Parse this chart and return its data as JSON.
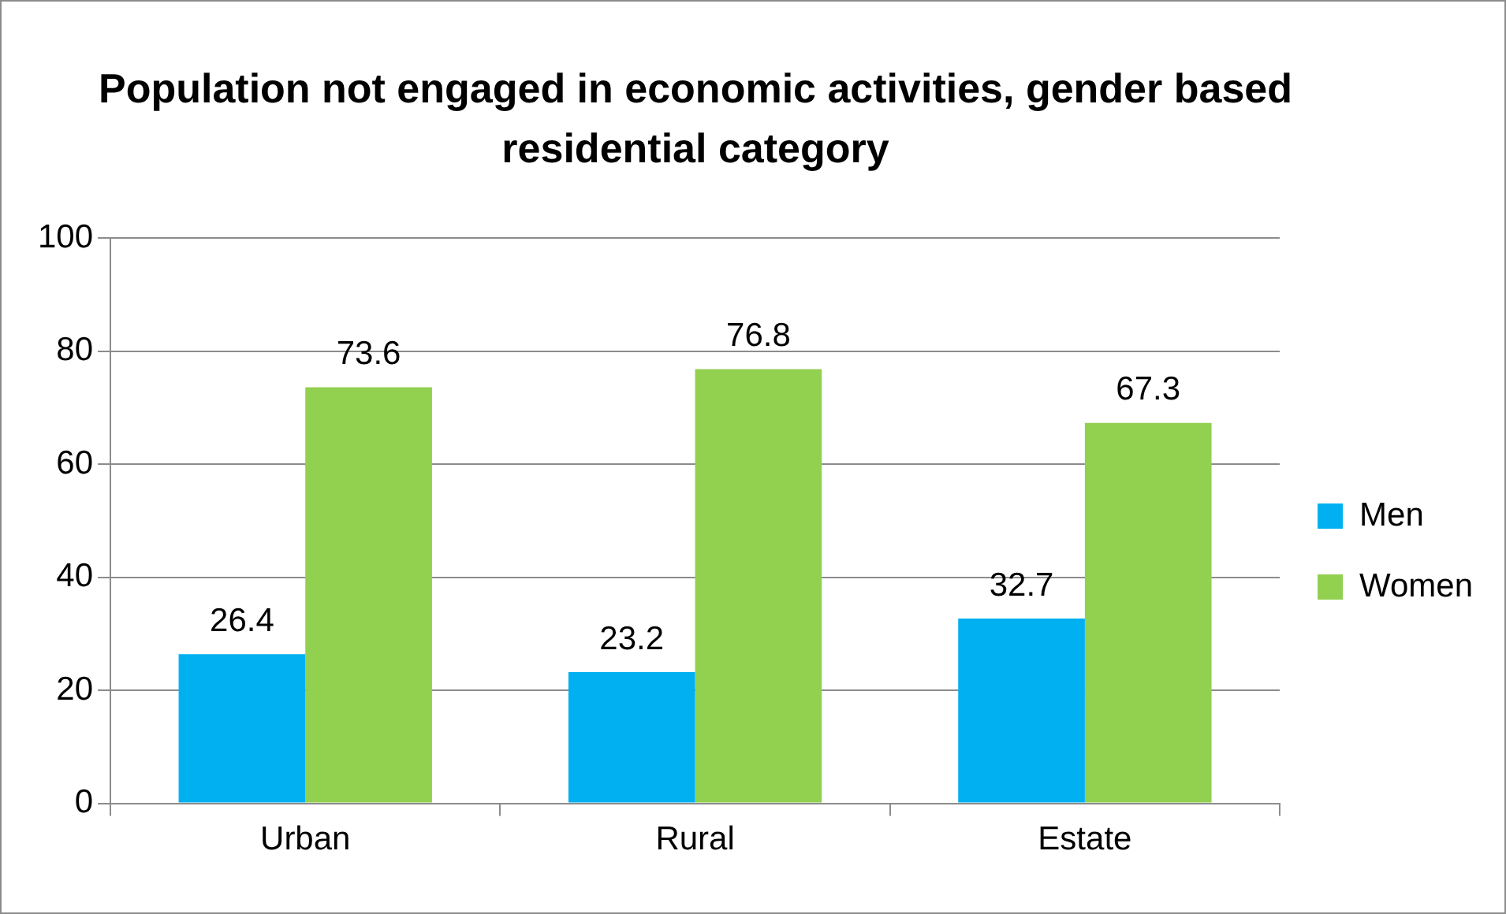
{
  "chart_data": {
    "type": "bar",
    "title": "Population not engaged in economic activities, gender based residential category",
    "categories": [
      "Urban",
      "Rural",
      "Estate"
    ],
    "series": [
      {
        "name": "Men",
        "color": "#00b0f0",
        "values": [
          26.4,
          23.2,
          32.7
        ]
      },
      {
        "name": "Women",
        "color": "#92d050",
        "values": [
          73.6,
          76.8,
          67.3
        ]
      }
    ],
    "ylim": [
      0,
      100
    ],
    "yticks": [
      0,
      20,
      40,
      60,
      80,
      100
    ],
    "grid": "y",
    "legend": "right",
    "data_labels": true
  }
}
